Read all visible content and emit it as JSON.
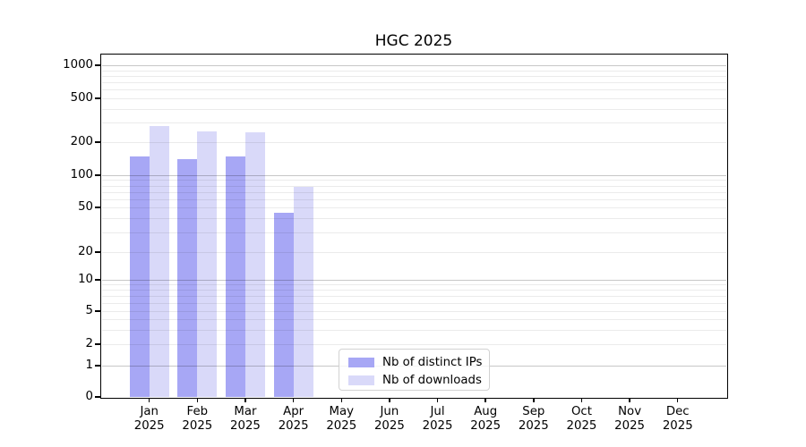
{
  "title": "HGC 2025",
  "colors": {
    "distinct_ips": "#a7a7f5",
    "downloads": "#d9d9f9",
    "grid_major": "rgba(0,0,0,0.22)",
    "grid_minor": "rgba(0,0,0,0.08)",
    "axis": "#000000"
  },
  "legend": {
    "items": [
      {
        "id": "distinct_ips",
        "label": "Nb of distinct IPs"
      },
      {
        "id": "downloads",
        "label": "Nb of downloads"
      }
    ]
  },
  "y_axis": {
    "tick_labels": [
      "0",
      "1",
      "2",
      "5",
      "10",
      "20",
      "50",
      "100",
      "200",
      "500",
      "1000"
    ]
  },
  "chart_data": {
    "type": "bar",
    "title": "HGC 2025",
    "xlabel": "",
    "ylabel": "",
    "yscale": "symlog (linear 0-1, log above 1)",
    "ylim": [
      0,
      1260
    ],
    "grid": "horizontal, major and minor",
    "legend_position": "inside axes, lower center-left",
    "categories": [
      "Jan 2025",
      "Feb 2025",
      "Mar 2025",
      "Apr 2025",
      "May 2025",
      "Jun 2025",
      "Jul 2025",
      "Aug 2025",
      "Sep 2025",
      "Oct 2025",
      "Nov 2025",
      "Dec 2025"
    ],
    "y_ticks": [
      0,
      1,
      2,
      5,
      10,
      20,
      50,
      100,
      200,
      500,
      1000
    ],
    "series": [
      {
        "name": "Nb of distinct IPs",
        "color_key": "distinct_ips",
        "values": [
          148,
          139,
          147,
          45,
          null,
          null,
          null,
          null,
          null,
          null,
          null,
          null
        ]
      },
      {
        "name": "Nb of downloads",
        "color_key": "downloads",
        "values": [
          281,
          252,
          244,
          78,
          null,
          null,
          null,
          null,
          null,
          null,
          null,
          null
        ]
      }
    ]
  }
}
